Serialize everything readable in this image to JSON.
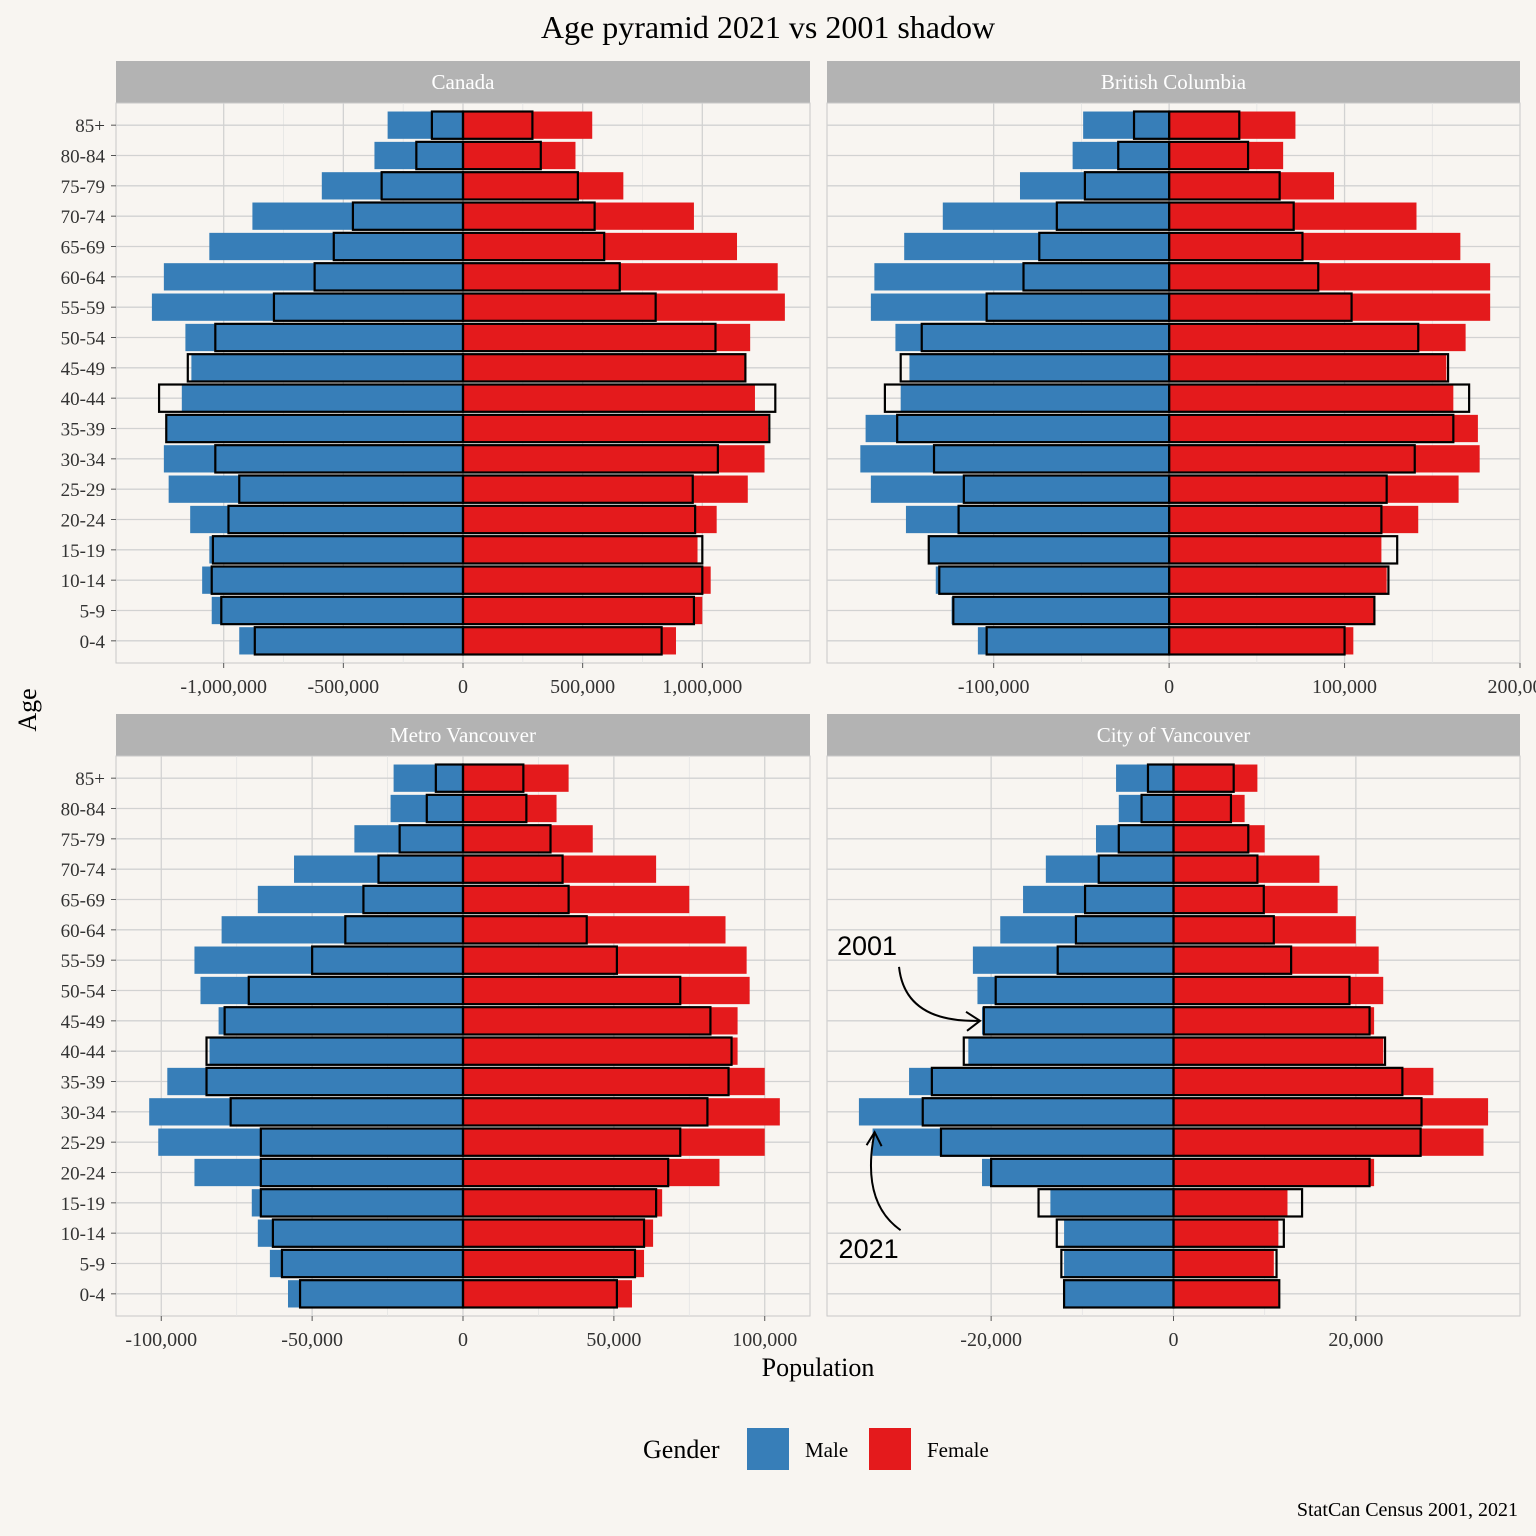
{
  "chart_data": {
    "type": "bar",
    "title": "Age pyramid 2021 vs 2001 shadow",
    "xlabel": "Population",
    "ylabel": "Age",
    "caption": "StatCan Census 2001, 2021",
    "legend": {
      "title": "Gender",
      "position": "bottom",
      "entries": [
        {
          "name": "Male",
          "color": "#377eb8"
        },
        {
          "name": "Female",
          "color": "#e41a1c"
        }
      ]
    },
    "categories": [
      "0-4",
      "5-9",
      "10-14",
      "15-19",
      "20-24",
      "25-29",
      "30-34",
      "35-39",
      "40-44",
      "45-49",
      "50-54",
      "55-59",
      "60-64",
      "65-69",
      "70-74",
      "75-79",
      "80-84",
      "85+"
    ],
    "panels": [
      {
        "name": "Canada",
        "xlim": [
          -1450000,
          1450000
        ],
        "ticks": [
          -1000000,
          -500000,
          0,
          500000,
          1000000
        ],
        "tick_labels": [
          "-1,000,000",
          "-500,000",
          "0",
          "500,000",
          "1,000,000"
        ],
        "male_2021": [
          935000,
          1050000,
          1090000,
          1060000,
          1140000,
          1230000,
          1250000,
          1240000,
          1175000,
          1135000,
          1160000,
          1300000,
          1250000,
          1060000,
          880000,
          590000,
          370000,
          315000
        ],
        "female_2021": [
          890000,
          1000000,
          1035000,
          980000,
          1060000,
          1190000,
          1260000,
          1275000,
          1220000,
          1180000,
          1200000,
          1345000,
          1315000,
          1145000,
          965000,
          670000,
          470000,
          540000
        ],
        "male_2001": [
          870000,
          1010000,
          1050000,
          1045000,
          980000,
          935000,
          1035000,
          1240000,
          1270000,
          1150000,
          1035000,
          790000,
          620000,
          540000,
          460000,
          340000,
          195000,
          130000
        ],
        "female_2001": [
          830000,
          965000,
          1000000,
          1000000,
          970000,
          960000,
          1065000,
          1280000,
          1305000,
          1180000,
          1055000,
          805000,
          655000,
          590000,
          550000,
          480000,
          325000,
          290000
        ]
      },
      {
        "name": "British Columbia",
        "xlim": [
          -195000,
          200000
        ],
        "ticks": [
          -100000,
          0,
          100000,
          200000
        ],
        "tick_labels": [
          "-100,000",
          "0",
          "100,000",
          "200,000"
        ],
        "male_2021": [
          109000,
          124000,
          133000,
          137000,
          150000,
          170000,
          176000,
          173000,
          153000,
          148000,
          156000,
          170000,
          168000,
          151000,
          129000,
          85000,
          55000,
          49000
        ],
        "female_2021": [
          105000,
          117000,
          124000,
          121000,
          142000,
          165000,
          177000,
          176000,
          162000,
          158000,
          169000,
          183000,
          183000,
          166000,
          141000,
          94000,
          65000,
          72000
        ],
        "male_2001": [
          104000,
          123000,
          131000,
          137000,
          120000,
          117000,
          134000,
          155000,
          162000,
          153000,
          141000,
          104000,
          83000,
          74000,
          64000,
          48000,
          29000,
          20000
        ],
        "female_2001": [
          100000,
          117000,
          125000,
          130000,
          121000,
          124000,
          140000,
          162000,
          171000,
          159000,
          142000,
          104000,
          85000,
          76000,
          71000,
          63000,
          45000,
          40000
        ]
      },
      {
        "name": "Metro Vancouver",
        "xlim": [
          -115000,
          115000
        ],
        "ticks": [
          -100000,
          -50000,
          0,
          50000,
          100000
        ],
        "tick_labels": [
          "-100,000",
          "-50,000",
          "0",
          "50,000",
          "100,000"
        ],
        "male_2021": [
          58000,
          64000,
          68000,
          70000,
          89000,
          101000,
          104000,
          98000,
          84000,
          81000,
          87000,
          89000,
          80000,
          68000,
          56000,
          36000,
          24000,
          23000
        ],
        "female_2021": [
          56000,
          60000,
          63000,
          66000,
          85000,
          100000,
          105000,
          100000,
          91000,
          91000,
          95000,
          94000,
          87000,
          75000,
          64000,
          43000,
          31000,
          35000
        ],
        "male_2001": [
          54000,
          60000,
          63000,
          67000,
          67000,
          67000,
          77000,
          85000,
          85000,
          79000,
          71000,
          50000,
          39000,
          33000,
          28000,
          21000,
          12000,
          9000
        ],
        "female_2001": [
          51000,
          57000,
          60000,
          64000,
          68000,
          72000,
          81000,
          88000,
          89000,
          82000,
          72000,
          51000,
          41000,
          35000,
          33000,
          29000,
          21000,
          20000
        ]
      },
      {
        "name": "City of Vancouver",
        "xlim": [
          -38000,
          38000
        ],
        "ticks": [
          -20000,
          0,
          20000
        ],
        "tick_labels": [
          "-20,000",
          "0",
          "20,000"
        ],
        "male_2021": [
          12000,
          12000,
          12000,
          13500,
          21000,
          33000,
          34500,
          29000,
          22500,
          21000,
          21500,
          22000,
          19000,
          16500,
          14000,
          8500,
          6000,
          6300
        ],
        "female_2021": [
          11500,
          11000,
          11500,
          12500,
          22000,
          34000,
          34500,
          28500,
          23000,
          22000,
          23000,
          22500,
          20000,
          18000,
          16000,
          10000,
          7800,
          9200
        ],
        "male_2001": [
          12000,
          12300,
          12800,
          14800,
          20000,
          25500,
          27500,
          26500,
          23000,
          20800,
          19500,
          12700,
          10700,
          9700,
          8200,
          6000,
          3500,
          2800
        ],
        "female_2001": [
          11600,
          11300,
          12100,
          14100,
          21500,
          27100,
          27200,
          25100,
          23200,
          21500,
          19300,
          12900,
          11000,
          9900,
          9200,
          8200,
          6300,
          6600
        ]
      }
    ],
    "annotations": [
      {
        "panel": "City of Vancouver",
        "text": "2001",
        "points_to": {
          "age": "45-49",
          "value": -21000
        }
      },
      {
        "panel": "City of Vancouver",
        "text": "2021",
        "points_to": {
          "age": "25-29",
          "value": -33000
        }
      }
    ]
  }
}
